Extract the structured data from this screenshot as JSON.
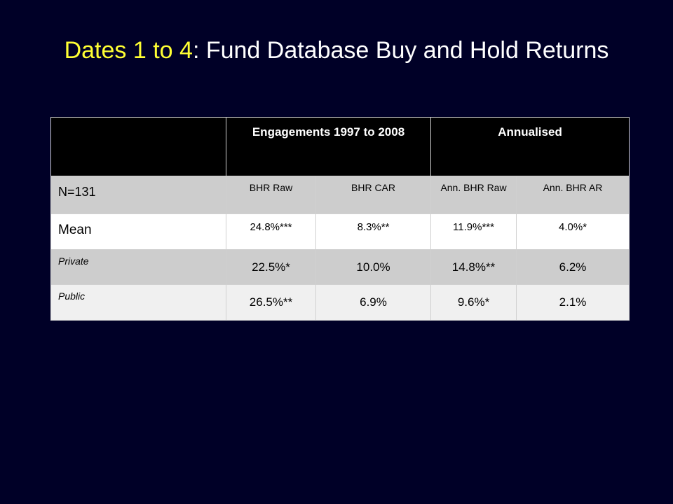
{
  "title": {
    "highlight": "Dates 1 to 4",
    "rest": ": Fund Database Buy and Hold Returns"
  },
  "table": {
    "header": {
      "corner": "",
      "group1": "Engagements 1997 to 2008",
      "group2": "Annualised"
    },
    "subheader": {
      "label": "N=131",
      "cols": [
        "BHR Raw",
        "BHR CAR",
        "Ann. BHR Raw",
        "Ann. BHR AR"
      ]
    },
    "rows": [
      {
        "label": "Mean",
        "values": [
          "24.8%***",
          "8.3%**",
          "11.9%***",
          "4.0%*"
        ]
      },
      {
        "label": "Private",
        "values": [
          "22.5%*",
          "10.0%",
          "14.8%**",
          "6.2%"
        ]
      },
      {
        "label": "Public",
        "values": [
          "26.5%**",
          "6.9%",
          "9.6%*",
          "2.1%"
        ]
      }
    ]
  },
  "colors": {
    "background": "#000027",
    "title_highlight": "#ffff33",
    "title_text": "#ffffff",
    "header_bg": "#000000",
    "band_gray": "#cdcdcd"
  }
}
